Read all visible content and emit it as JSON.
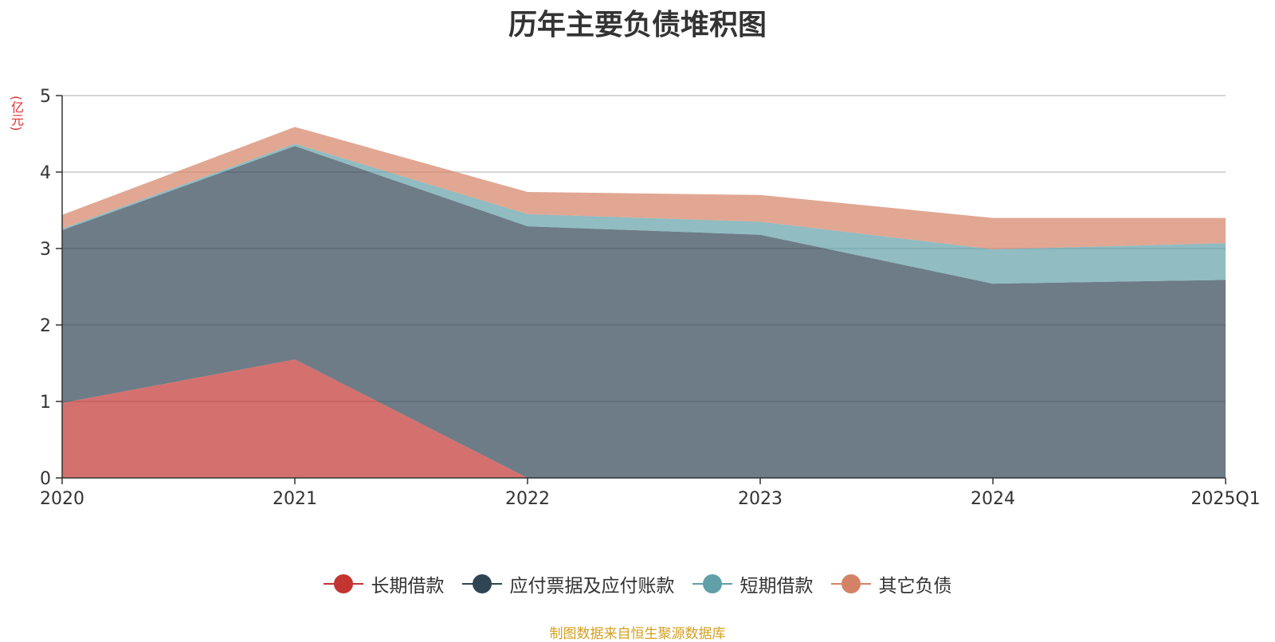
{
  "chart_data": {
    "type": "area",
    "stacked": true,
    "title": "历年主要负债堆积图",
    "unit": "(亿元)",
    "categories": [
      "2020",
      "2021",
      "2022",
      "2023",
      "2024",
      "2025Q1"
    ],
    "ylim": [
      0,
      5
    ],
    "yticks": [
      "0",
      "1",
      "2",
      "3",
      "4",
      "5"
    ],
    "grid": true,
    "legend_position": "bottom",
    "series": [
      {
        "name": "长期借款",
        "color": "#c23531",
        "values": [
          0.98,
          1.55,
          0.0,
          0.0,
          0.0,
          0.0
        ]
      },
      {
        "name": "应付票据及应付账款",
        "color": "#2f4554",
        "values": [
          2.26,
          2.79,
          3.29,
          3.18,
          2.54,
          2.59
        ]
      },
      {
        "name": "短期借款",
        "color": "#61a0a8",
        "values": [
          0.02,
          0.03,
          0.16,
          0.17,
          0.45,
          0.48
        ]
      },
      {
        "name": "其它负债",
        "color": "#d48265",
        "values": [
          0.18,
          0.22,
          0.29,
          0.35,
          0.41,
          0.33
        ]
      }
    ]
  },
  "footer": {
    "source": "制图数据来自恒生聚源数据库"
  }
}
